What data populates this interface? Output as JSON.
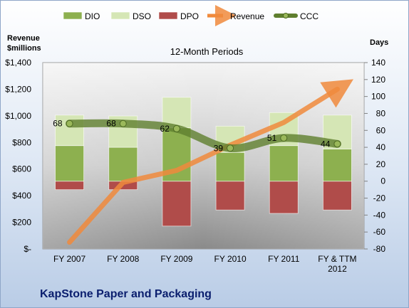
{
  "chart_data": {
    "type": "bar",
    "title": "12-Month Periods",
    "company": "KapStone Paper and Packaging",
    "categories": [
      "FY 2007",
      "FY 2008",
      "FY 2009",
      "FY 2010",
      "FY 2011",
      "FY & TTM 2012"
    ],
    "left_axis": {
      "label_lines": [
        "Revenue",
        "$millions"
      ],
      "ticks": [
        "$-",
        "$200",
        "$400",
        "$600",
        "$800",
        "$1,000",
        "$1,200",
        "$1,400"
      ],
      "range": [
        0,
        1400
      ]
    },
    "right_axis": {
      "label": "Days",
      "ticks": [
        "-80",
        "-60",
        "-40",
        "-20",
        "0",
        "20",
        "40",
        "60",
        "80",
        "100",
        "120",
        "140"
      ],
      "range": [
        -80,
        140
      ]
    },
    "series": [
      {
        "name": "DIO",
        "kind": "bar",
        "axis": "right",
        "color": "#8db04f",
        "values": [
          42,
          40,
          63,
          34,
          42,
          38
        ]
      },
      {
        "name": "DSO",
        "kind": "bar",
        "axis": "right",
        "color": "#d5e6b5",
        "values": [
          36,
          37,
          36,
          31,
          39,
          40
        ]
      },
      {
        "name": "DPO",
        "kind": "bar",
        "axis": "right",
        "color": "#b04c4a",
        "values": [
          -10,
          -10,
          -53,
          -34,
          -38,
          -34
        ]
      },
      {
        "name": "Revenue",
        "kind": "line",
        "axis": "left",
        "color": "#f08a3c",
        "values": [
          50,
          500,
          590,
          780,
          950,
          1200
        ]
      },
      {
        "name": "CCC",
        "kind": "line",
        "axis": "right",
        "color": "#5f7f2e",
        "values": [
          68,
          68,
          62,
          39,
          51,
          44
        ],
        "labels": [
          "68",
          "68",
          "62",
          "39",
          "51",
          "44"
        ]
      }
    ],
    "legend_position": "top",
    "grid": false
  }
}
